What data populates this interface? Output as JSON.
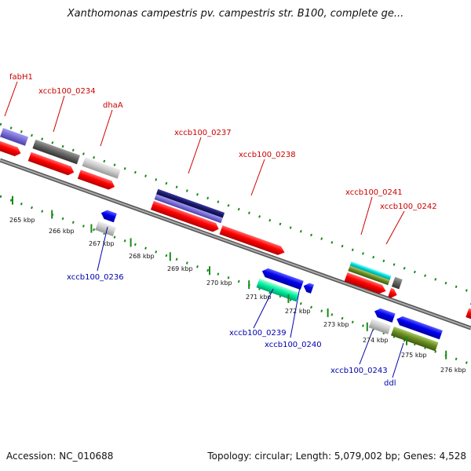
{
  "title": "Xanthomonas campestris pv. campestris str. B100, complete ge...",
  "footer": {
    "accession": "Accession: NC_010688",
    "topology": "Topology: circular; Length: 5,079,002 bp; Genes: 4,528"
  },
  "colors": {
    "outer_dots": "#1a8a1a",
    "inner_dots": "#1a8a1a",
    "backbone": "#888888",
    "label_top": "#cc0000",
    "label_bottom": "#0000aa"
  },
  "kbp_ticks": [
    "265 kbp",
    "266 kbp",
    "267 kbp",
    "268 kbp",
    "269 kbp",
    "270 kbp",
    "271 kbp",
    "272 kbp",
    "273 kbp",
    "274 kbp",
    "275 kbp",
    "276 kbp"
  ],
  "top_labels": [
    "fabH1",
    "xccb100_0234",
    "dhaA",
    "xccb100_0237",
    "xccb100_0238",
    "xccb100_0241",
    "xccb100_0242"
  ],
  "bottom_labels": [
    "xccb100_0236",
    "xccb100_0239",
    "xccb100_0240",
    "xccb100_0243",
    "ddl"
  ]
}
